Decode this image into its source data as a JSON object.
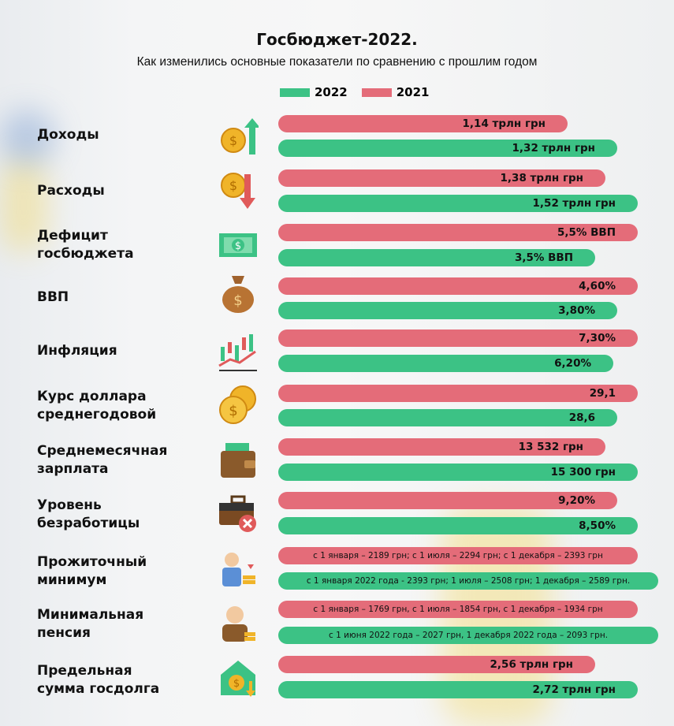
{
  "colors": {
    "y2022": "#3cc285",
    "y2021": "#e46c79"
  },
  "title": "Госбюджет-2022.",
  "subtitle": "Как изменились основные показатели по сравнению с прошлим годом",
  "legend": [
    {
      "label": "2022",
      "color": "#3cc285"
    },
    {
      "label": "2021",
      "color": "#e46c79"
    }
  ],
  "rows": [
    {
      "label": "Доходы",
      "icon": "coin-arrow-up-icon",
      "v2021": "1,14 трлн грн",
      "v2022": "1,32 трлн грн"
    },
    {
      "label": "Расходы",
      "icon": "coin-arrow-down-icon",
      "v2021": "1,38 трлн грн",
      "v2022": "1,52 трлн грн"
    },
    {
      "label": "Дефицит госбюджета",
      "icon": "banknote-icon",
      "v2021": "5,5% ВВП",
      "v2022": "3,5% ВВП"
    },
    {
      "label": "ВВП",
      "icon": "money-bag-icon",
      "v2021": "4,60%",
      "v2022": "3,80%"
    },
    {
      "label": "Инфляция",
      "icon": "candlestick-chart-icon",
      "v2021": "7,30%",
      "v2022": "6,20%"
    },
    {
      "label": "Курс доллара среднегодовой",
      "icon": "coins-icon",
      "v2021": "29,1",
      "v2022": "28,6"
    },
    {
      "label": "Среднемесячная зарплата",
      "icon": "wallet-icon",
      "v2021": "13 532 грн",
      "v2022": "15 300 грн"
    },
    {
      "label": "Уровень безработицы",
      "icon": "briefcase-x-icon",
      "v2021": "9,20%",
      "v2022": "8,50%"
    },
    {
      "label": "Прожиточный минимум",
      "icon": "person-coins-icon",
      "v2021": "с 1 января – 2189 грн; с 1 июля – 2294 грн; с 1 декабря – 2393 грн",
      "v2022": "с 1 января 2022 года - 2393 грн; 1 июля – 2508 грн; 1 декабря – 2589 грн."
    },
    {
      "label": "Минимальная пенсия",
      "icon": "elderly-person-icon",
      "v2021": "с 1 января – 1769 грн, с 1 июля – 1854 грн, с 1 декабря – 1934 грн",
      "v2022": "с 1 июня 2022 года – 2027 грн, 1 декабря 2022 года – 2093 грн."
    },
    {
      "label": "Предельная сумма госдолга",
      "icon": "house-coin-icon",
      "v2021": "2,56 трлн грн",
      "v2022": "2,72 трлн грн"
    }
  ],
  "chart_data": {
    "type": "bar",
    "title": "Госбюджет-2022.",
    "subtitle": "Как изменились основные показатели по сравнению с прошлим годом",
    "categories": [
      "Доходы",
      "Расходы",
      "Дефицит госбюджета",
      "ВВП",
      "Инфляция",
      "Курс доллара среднегодовой",
      "Среднемесячная зарплата",
      "Уровень безработицы",
      "Прожиточный минимум",
      "Минимальная пенсия",
      "Предельная сумма госдолга"
    ],
    "series": [
      {
        "name": "2021",
        "color": "#e46c79",
        "data_labels": [
          "1,14 трлн грн",
          "1,38 трлн грн",
          "5,5% ВВП",
          "4,60%",
          "7,30%",
          "29,1",
          "13 532 грн",
          "9,20%",
          "с 1 января – 2189 грн; с 1 июля – 2294 грн; с 1 декабря – 2393 грн",
          "с 1 января – 1769 грн, с 1 июля – 1854 грн, с 1 декабря – 1934 грн",
          "2,56 трлн грн"
        ]
      },
      {
        "name": "2022",
        "color": "#3cc285",
        "data_labels": [
          "1,32 трлн грн",
          "1,52 трлн грн",
          "3,5% ВВП",
          "3,80%",
          "6,20%",
          "28,6",
          "15 300 грн",
          "8,50%",
          "с 1 января 2022 года - 2393 грн; 1 июля – 2508 грн; 1 декабря – 2589 грн.",
          "с 1 июня 2022 года – 2027 грн, 1 декабря 2022 года – 2093 грн.",
          "2,72 трлн грн"
        ]
      }
    ],
    "orientation": "horizontal",
    "legend_position": "top",
    "grid": false
  }
}
